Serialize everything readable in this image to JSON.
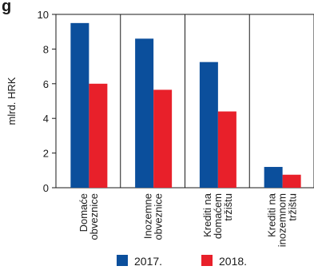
{
  "title_fragment": "g",
  "chart_data": {
    "type": "bar",
    "ylabel": "mlrd. HRK",
    "ylim": [
      0,
      10
    ],
    "yticks": [
      "0",
      "2",
      "4",
      "6",
      "8",
      "10"
    ],
    "categories": [
      [
        "Domaće",
        "obveznice"
      ],
      [
        "Inozemne",
        "obveznice"
      ],
      [
        "Krediti na",
        "domaćem",
        "tržištu"
      ],
      [
        "Krediti na",
        "inozemnom",
        "tržištu"
      ]
    ],
    "series": [
      {
        "name": "2017.",
        "color": "#0b4f9c",
        "values": [
          9.5,
          8.6,
          7.25,
          1.2
        ]
      },
      {
        "name": "2018.",
        "color": "#e8202a",
        "values": [
          6.0,
          5.65,
          4.4,
          0.75
        ]
      }
    ],
    "grid": false,
    "legend_position": "bottom"
  }
}
